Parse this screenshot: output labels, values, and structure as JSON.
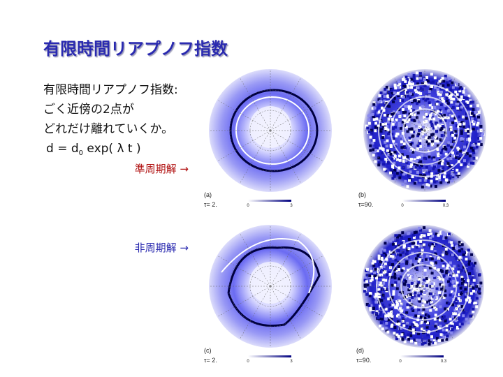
{
  "header": {
    "title": "有限時間リアプノフ指数"
  },
  "body": {
    "lines": [
      "有限時間リアプノフ指数:",
      "ごく近傍の2点が",
      "どれだけ離れていくか。"
    ],
    "formula": {
      "main": "d = d",
      "subscript": "0",
      "rest": " exp( λ t )"
    }
  },
  "labels": {
    "quasi_periodic": "準周期解 →",
    "aperiodic": "非周期解 →"
  },
  "panels": [
    {
      "label": "(a)",
      "tau": "τ= 2.",
      "cbar_min": "0",
      "cbar_max": "3"
    },
    {
      "label": "(b)",
      "tau": "τ=90.",
      "cbar_min": "0",
      "cbar_max": "0.3"
    },
    {
      "label": "(c)",
      "tau": "τ= 2.",
      "cbar_min": "0",
      "cbar_max": "3"
    },
    {
      "label": "(d)",
      "tau": "τ=90.",
      "cbar_min": "0",
      "cbar_max": "0.3"
    }
  ]
}
